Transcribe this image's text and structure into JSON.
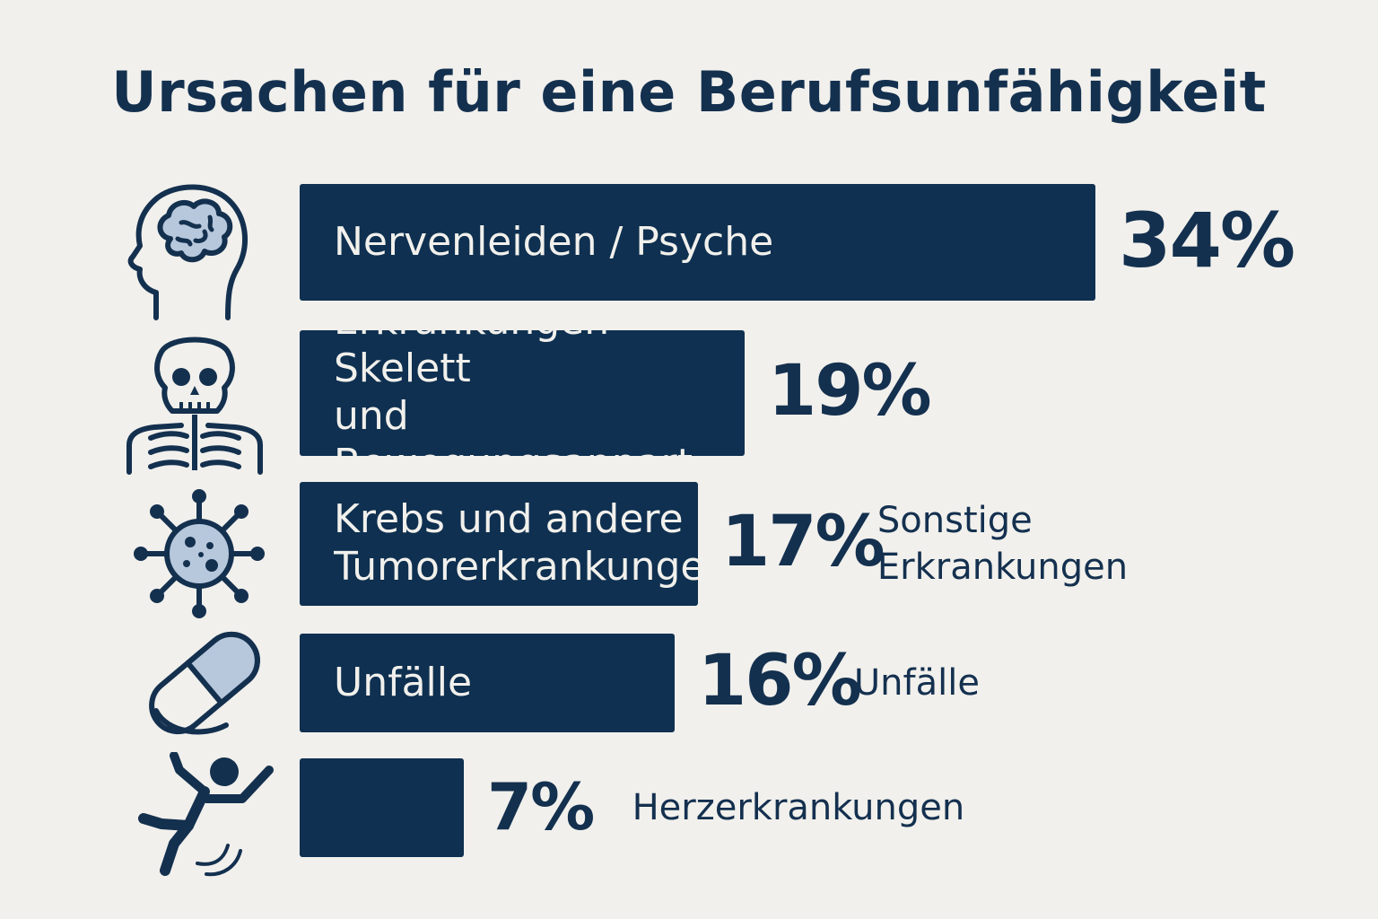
{
  "chart_data": {
    "type": "bar",
    "title": "Ursachen für eine Berufsunfähigkeit",
    "categories": [
      "Nervenleiden / Psyche",
      "Erkrankungen Skelett\nund Bewegungsappart",
      "Krebs und andere\nTumorerkrankunge",
      "Unfälle",
      ""
    ],
    "values": [
      34,
      19,
      17,
      16,
      7
    ],
    "value_labels": [
      "34%",
      "19%",
      "17%",
      "16%",
      "7%"
    ],
    "side_labels": [
      "",
      "",
      "Sonstige\nErkrankungen",
      "Unfälle",
      "Herzerkrankungen"
    ],
    "icons": [
      "brain-head-icon",
      "skeleton-icon",
      "virus-icon",
      "pill-capsule-icon",
      "falling-person-icon"
    ],
    "orientation": "horizontal",
    "bar_color": "#0f3050",
    "text_color": "#14304f",
    "background": "#f1f0ec"
  }
}
